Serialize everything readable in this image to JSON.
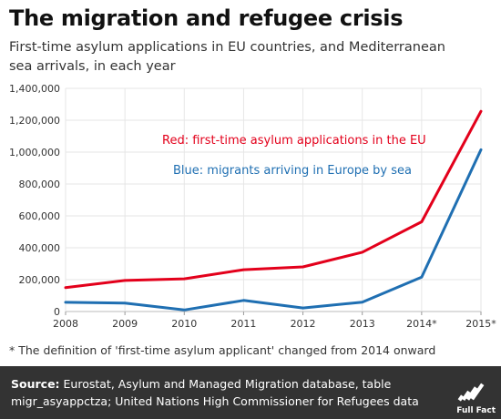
{
  "header": {
    "title": "The migration and refugee crisis",
    "subtitle": "First-time asylum applications in EU countries, and Mediterranean sea arrivals, in each year"
  },
  "chart_data": {
    "type": "line",
    "x": [
      "2008",
      "2009",
      "2010",
      "2011",
      "2012",
      "2013",
      "2014*",
      "2015*"
    ],
    "y_ticks": [
      "0",
      "200,000",
      "400,000",
      "600,000",
      "800,000",
      "1,000,000",
      "1,200,000",
      "1,400,000"
    ],
    "ylim": [
      0,
      1400000
    ],
    "grid": true,
    "series": [
      {
        "name": "Red: first-time asylum applications in the EU",
        "color": "#e3001b",
        "values": [
          150000,
          195000,
          205000,
          262000,
          280000,
          372000,
          563000,
          1256000
        ]
      },
      {
        "name": "Blue: migrants arriving in Europe by sea",
        "color": "#1f6fb2",
        "values": [
          58000,
          53000,
          10000,
          70000,
          22000,
          59000,
          216000,
          1015000
        ]
      }
    ]
  },
  "footnote": "* The definition of 'first-time asylum applicant' changed from 2014 onward",
  "source": {
    "label": "Source:",
    "text": "Eurostat, Asylum and Managed Migration database, table migr_asyappctza; United Nations High Commissioner for Refugees data"
  },
  "logo": {
    "text": "Full Fact",
    "icon": "full-fact-logo"
  }
}
